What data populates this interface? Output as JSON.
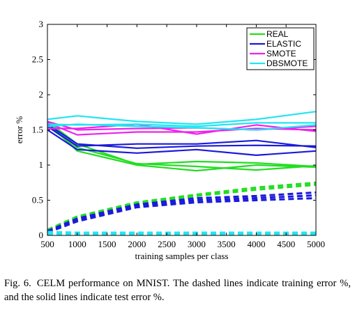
{
  "chart_data": {
    "type": "line",
    "title": "",
    "xlabel": "training samples per class",
    "ylabel": "error %",
    "xlim": [
      500,
      5000
    ],
    "ylim": [
      0,
      3
    ],
    "x_ticks": [
      500,
      1000,
      1500,
      2000,
      2500,
      3000,
      3500,
      4000,
      4500,
      5000
    ],
    "y_ticks": [
      0,
      0.5,
      1,
      1.5,
      2,
      2.5,
      3
    ],
    "y_tick_labels": [
      "0",
      "0.5",
      "1",
      "1.5",
      "2",
      "2.5",
      "3"
    ],
    "grid": false,
    "legend_position": "top-right",
    "x": [
      500,
      1000,
      2000,
      3000,
      4000,
      5000
    ],
    "legend": [
      {
        "name": "REAL",
        "color": "#22dd22"
      },
      {
        "name": "ELASTIC",
        "color": "#1a1adb"
      },
      {
        "name": "SMOTE",
        "color": "#ee22ee"
      },
      {
        "name": "DBSMOTE",
        "color": "#22e5f0"
      }
    ],
    "series": [
      {
        "group": "REAL",
        "style": "solid",
        "color": "#22dd22",
        "values": [
          1.6,
          1.2,
          1.0,
          0.92,
          1.0,
          0.97
        ]
      },
      {
        "group": "REAL",
        "style": "solid",
        "color": "#22dd22",
        "values": [
          1.55,
          1.25,
          1.02,
          0.98,
          0.93,
          0.99
        ]
      },
      {
        "group": "REAL",
        "style": "solid",
        "color": "#22dd22",
        "values": [
          1.62,
          1.3,
          1.01,
          1.05,
          1.03,
          0.98
        ]
      },
      {
        "group": "ELASTIC",
        "style": "solid",
        "color": "#1a1adb",
        "values": [
          1.5,
          1.22,
          1.17,
          1.22,
          1.14,
          1.2
        ]
      },
      {
        "group": "ELASTIC",
        "style": "solid",
        "color": "#1a1adb",
        "values": [
          1.55,
          1.27,
          1.3,
          1.3,
          1.35,
          1.25
        ]
      },
      {
        "group": "ELASTIC",
        "style": "solid",
        "color": "#1a1adb",
        "values": [
          1.58,
          1.3,
          1.24,
          1.27,
          1.28,
          1.27
        ]
      },
      {
        "group": "SMOTE",
        "style": "solid",
        "color": "#ee22ee",
        "values": [
          1.6,
          1.43,
          1.47,
          1.47,
          1.52,
          1.5
        ]
      },
      {
        "group": "SMOTE",
        "style": "solid",
        "color": "#ee22ee",
        "values": [
          1.52,
          1.52,
          1.58,
          1.44,
          1.57,
          1.48
        ]
      },
      {
        "group": "SMOTE",
        "style": "solid",
        "color": "#ee22ee",
        "values": [
          1.62,
          1.5,
          1.52,
          1.53,
          1.5,
          1.55
        ]
      },
      {
        "group": "DBSMOTE",
        "style": "solid",
        "color": "#22e5f0",
        "values": [
          1.65,
          1.7,
          1.62,
          1.58,
          1.65,
          1.76
        ]
      },
      {
        "group": "DBSMOTE",
        "style": "solid",
        "color": "#22e5f0",
        "values": [
          1.58,
          1.57,
          1.58,
          1.55,
          1.6,
          1.6
        ]
      },
      {
        "group": "DBSMOTE",
        "style": "solid",
        "color": "#22e5f0",
        "values": [
          1.55,
          1.58,
          1.55,
          1.53,
          1.5,
          1.57
        ]
      },
      {
        "group": "REAL",
        "style": "dashed",
        "color": "#22dd22",
        "values": [
          0.08,
          0.27,
          0.47,
          0.58,
          0.68,
          0.75
        ]
      },
      {
        "group": "REAL",
        "style": "dashed",
        "color": "#22dd22",
        "values": [
          0.06,
          0.25,
          0.45,
          0.56,
          0.65,
          0.72
        ]
      },
      {
        "group": "ELASTIC",
        "style": "dashed",
        "color": "#1a1adb",
        "values": [
          0.05,
          0.22,
          0.42,
          0.5,
          0.53,
          0.57
        ]
      },
      {
        "group": "ELASTIC",
        "style": "dashed",
        "color": "#1a1adb",
        "values": [
          0.04,
          0.2,
          0.4,
          0.47,
          0.5,
          0.53
        ]
      },
      {
        "group": "ELASTIC",
        "style": "dashed",
        "color": "#1a1adb",
        "values": [
          0.06,
          0.24,
          0.44,
          0.53,
          0.56,
          0.61
        ]
      },
      {
        "group": "SMOTE",
        "style": "dashed",
        "color": "#ee22ee",
        "values": [
          0.03,
          0.03,
          0.03,
          0.03,
          0.03,
          0.03
        ]
      },
      {
        "group": "DBSMOTE",
        "style": "dashed",
        "color": "#22e5f0",
        "values": [
          0.05,
          0.04,
          0.04,
          0.04,
          0.04,
          0.04
        ]
      },
      {
        "group": "DBSMOTE",
        "style": "dashed",
        "color": "#22e5f0",
        "values": [
          0.02,
          0.02,
          0.02,
          0.02,
          0.02,
          0.02
        ]
      }
    ]
  },
  "caption": {
    "label": "Fig. 6.",
    "text": "CELM performance on MNIST. The dashed lines indicate training error %, and the solid lines indicate test error %."
  }
}
